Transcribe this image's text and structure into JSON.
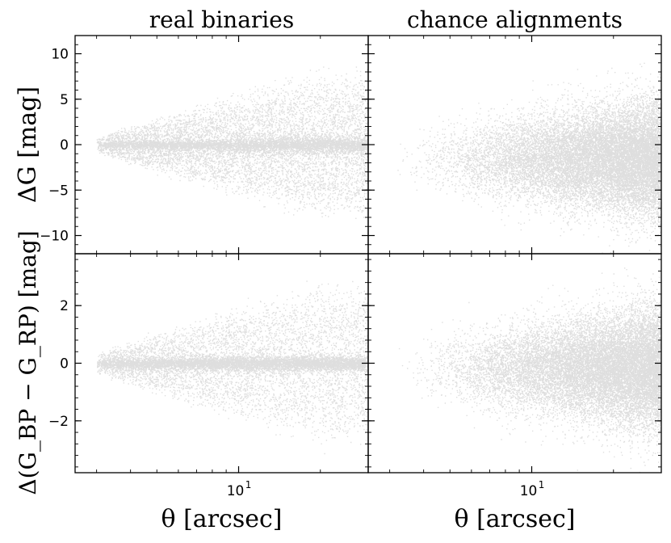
{
  "figure": {
    "background": "#ffffff",
    "point_color": "#000000",
    "point_opacity": 0.13
  },
  "chart_data": [
    {
      "type": "scatter",
      "title": "real binaries",
      "xlabel": "θ [arcsec]",
      "ylabel": "ΔG [mag]",
      "x_scale": "log",
      "xlim": [
        2.5,
        30
      ],
      "ylim": [
        -12,
        12
      ],
      "x_ticks": [
        {
          "value": 10,
          "label": "10",
          "exponent": "1"
        }
      ],
      "y_ticks": [
        {
          "value": 10,
          "label": "10"
        },
        {
          "value": 5,
          "label": "5"
        },
        {
          "value": 0,
          "label": "0"
        },
        {
          "value": -5,
          "label": "−5"
        },
        {
          "value": -10,
          "label": "−10"
        }
      ],
      "distribution": {
        "kind": "real",
        "points": 11000,
        "x_start": 3.0,
        "envelope_start": 0.8,
        "envelope_max": 8.5,
        "envelope_peak_x": 20,
        "core_fraction": 0.35,
        "core_width": 0.15,
        "trail_fraction": 0.22,
        "trail_frac": 0.05
      }
    },
    {
      "type": "scatter",
      "title": "chance alignments",
      "xlabel": "θ [arcsec]",
      "ylabel": "",
      "x_scale": "log",
      "xlim": [
        2.5,
        30
      ],
      "ylim": [
        -12,
        12
      ],
      "x_ticks": [
        {
          "value": 10,
          "label": "10",
          "exponent": "1"
        }
      ],
      "y_ticks": [
        {
          "value": 10,
          "label": ""
        },
        {
          "value": 5,
          "label": ""
        },
        {
          "value": 0,
          "label": ""
        },
        {
          "value": -5,
          "label": ""
        },
        {
          "value": -10,
          "label": ""
        }
      ],
      "distribution": {
        "kind": "chance",
        "points": 16000,
        "x_start": 3.1,
        "center": -1.5,
        "sigma_start": 1.5,
        "sigma_end": 3.2
      }
    },
    {
      "type": "scatter",
      "title": "",
      "xlabel": "θ [arcsec]",
      "ylabel": "Δ(G_BP − G_RP) [mag]",
      "x_scale": "log",
      "xlim": [
        2.5,
        30
      ],
      "ylim": [
        -3.8,
        3.8
      ],
      "x_ticks": [
        {
          "value": 10,
          "label": "10",
          "exponent": "1"
        }
      ],
      "y_ticks": [
        {
          "value": 2,
          "label": "2"
        },
        {
          "value": 0,
          "label": "0"
        },
        {
          "value": -2,
          "label": "−2"
        }
      ],
      "distribution": {
        "kind": "real",
        "points": 11000,
        "x_start": 3.0,
        "envelope_start": 0.35,
        "envelope_max": 2.9,
        "envelope_peak_x": 20,
        "core_fraction": 0.45,
        "core_width": 0.08,
        "trail_fraction": 0.22,
        "trail_frac": 0.03
      }
    },
    {
      "type": "scatter",
      "title": "",
      "xlabel": "θ [arcsec]",
      "ylabel": "",
      "x_scale": "log",
      "xlim": [
        2.5,
        30
      ],
      "ylim": [
        -3.8,
        3.8
      ],
      "x_ticks": [
        {
          "value": 10,
          "label": "10",
          "exponent": "1"
        }
      ],
      "y_ticks": [
        {
          "value": 2,
          "label": ""
        },
        {
          "value": 0,
          "label": ""
        },
        {
          "value": -2,
          "label": ""
        }
      ],
      "distribution": {
        "kind": "chance",
        "points": 16000,
        "x_start": 3.1,
        "center": -0.15,
        "sigma_start": 0.45,
        "sigma_end": 1.05
      }
    }
  ]
}
